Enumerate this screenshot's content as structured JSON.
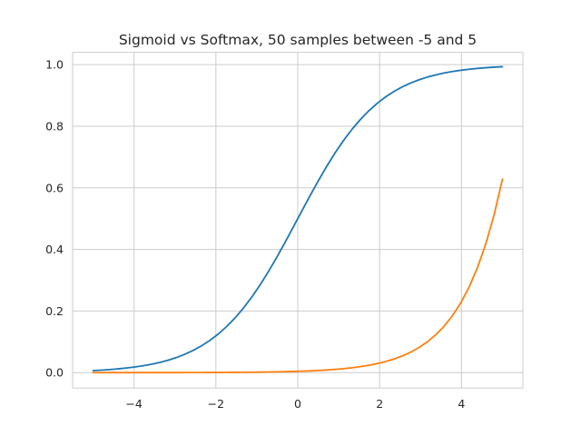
{
  "chart_data": {
    "type": "line",
    "title": "Sigmoid vs Softmax, 50 samples between -5 and 5",
    "xlabel": "",
    "ylabel": "",
    "xlim": [
      -5.5,
      5.5
    ],
    "ylim": [
      -0.05,
      1.04
    ],
    "grid": true,
    "legend": "none",
    "x_ticks": [
      {
        "value": -4,
        "label": "−4"
      },
      {
        "value": -2,
        "label": "−2"
      },
      {
        "value": 0,
        "label": "0"
      },
      {
        "value": 2,
        "label": "2"
      },
      {
        "value": 4,
        "label": "4"
      }
    ],
    "y_ticks": [
      {
        "value": 0.0,
        "label": "0.0"
      },
      {
        "value": 0.2,
        "label": "0.2"
      },
      {
        "value": 0.4,
        "label": "0.4"
      },
      {
        "value": 0.6,
        "label": "0.6"
      },
      {
        "value": 0.8,
        "label": "0.8"
      },
      {
        "value": 1.0,
        "label": "1.0"
      }
    ],
    "x": [
      -5.0,
      -4.796,
      -4.592,
      -4.388,
      -4.184,
      -3.98,
      -3.776,
      -3.571,
      -3.367,
      -3.163,
      -2.959,
      -2.755,
      -2.551,
      -2.347,
      -2.143,
      -1.939,
      -1.735,
      -1.531,
      -1.327,
      -1.122,
      -0.918,
      -0.714,
      -0.51,
      -0.306,
      -0.102,
      0.102,
      0.306,
      0.51,
      0.714,
      0.918,
      1.122,
      1.327,
      1.531,
      1.735,
      1.939,
      2.143,
      2.347,
      2.551,
      2.755,
      2.959,
      3.163,
      3.367,
      3.571,
      3.776,
      3.98,
      4.184,
      4.388,
      4.592,
      4.796,
      5.0
    ],
    "series": [
      {
        "color": "#1f77b4",
        "values": [
          0.0067,
          0.0082,
          0.01,
          0.0123,
          0.015,
          0.0183,
          0.0224,
          0.0273,
          0.0333,
          0.0406,
          0.0493,
          0.0598,
          0.0724,
          0.0873,
          0.105,
          0.1257,
          0.15,
          0.1779,
          0.2096,
          0.2456,
          0.2853,
          0.3287,
          0.3752,
          0.4241,
          0.4745,
          0.5255,
          0.5759,
          0.6248,
          0.6713,
          0.7147,
          0.7544,
          0.7904,
          0.8221,
          0.85,
          0.8743,
          0.895,
          0.9127,
          0.9276,
          0.9402,
          0.9507,
          0.9594,
          0.9667,
          0.9727,
          0.9776,
          0.9817,
          0.985,
          0.9877,
          0.99,
          0.9918,
          0.9933
        ]
      },
      {
        "color": "#ff7f0e",
        "values": [
          0.0,
          0.0,
          0.0001,
          0.0001,
          0.0001,
          0.0001,
          0.0001,
          0.0001,
          0.0002,
          0.0002,
          0.0002,
          0.0003,
          0.0003,
          0.0004,
          0.0005,
          0.0006,
          0.0008,
          0.0009,
          0.0011,
          0.0014,
          0.0017,
          0.0021,
          0.0025,
          0.0031,
          0.0038,
          0.0047,
          0.0057,
          0.007,
          0.0086,
          0.0106,
          0.013,
          0.0159,
          0.0195,
          0.0239,
          0.0293,
          0.0359,
          0.0441,
          0.0541,
          0.0663,
          0.0814,
          0.0998,
          0.1224,
          0.1502,
          0.1843,
          0.226,
          0.2773,
          0.3402,
          0.4174,
          0.512,
          0.6281
        ]
      }
    ]
  }
}
